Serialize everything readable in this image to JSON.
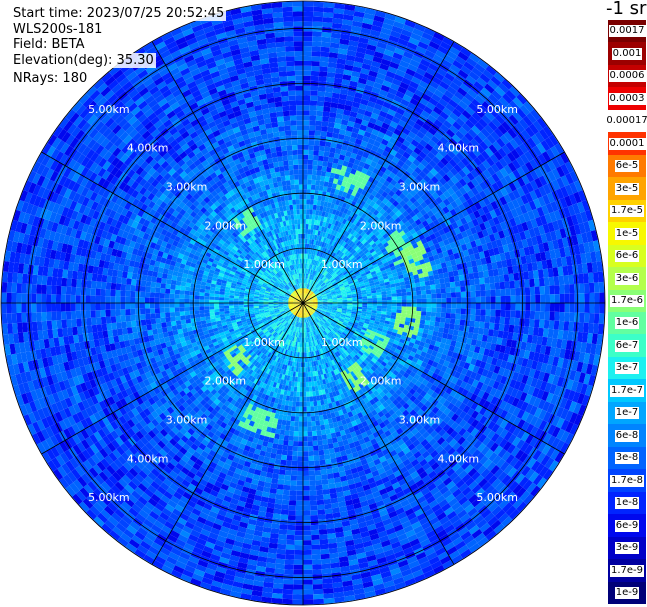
{
  "info": {
    "start_time": "Start time: 2023/07/25 20:52:45",
    "device": "WLS200s-181",
    "field": "Field: BETA",
    "elevation": "Elevation(deg): 35.30",
    "nrays": "NRays: 180"
  },
  "colorbar": {
    "unit_title": "-1 sr",
    "labels": [
      "0.0017",
      "0.001",
      "0.0006",
      "0.0003",
      "0.00017",
      "0.0001",
      "6e-5",
      "3e-5",
      "1.7e-5",
      "1e-5",
      "6e-6",
      "3e-6",
      "1.7e-6",
      "1e-6",
      "6e-7",
      "3e-7",
      "1.7e-7",
      "1e-7",
      "6e-8",
      "3e-8",
      "1.7e-8",
      "1e-8",
      "6e-9",
      "3e-9",
      "1.7e-9",
      "1e-9"
    ],
    "colors": [
      "#7a0000",
      "#9c0000",
      "#c40000",
      "#ee0000",
      "#ffffff",
      "#ff3300",
      "#ff7a00",
      "#ffa400",
      "#ffd100",
      "#f8f800",
      "#d8ff20",
      "#b4ff4c",
      "#8aff76",
      "#62ffa0",
      "#3cffc8",
      "#1cf0f0",
      "#00c8ff",
      "#00a6ff",
      "#0084ff",
      "#0064ff",
      "#0044ff",
      "#0024ff",
      "#0008ee",
      "#0000c8",
      "#0000a0",
      "#000078"
    ]
  },
  "chart_data": {
    "type": "heatmap",
    "projection": "polar-ppi",
    "field": "BETA",
    "elevation_deg": 35.3,
    "n_rays": 180,
    "range_rings_km": [
      1,
      2,
      3,
      4,
      5
    ],
    "range_labels": [
      "1.00km",
      "2.00km",
      "3.00km",
      "4.00km",
      "5.00km"
    ],
    "azimuth_lines_deg": [
      0,
      30,
      60,
      90,
      120,
      150,
      180,
      210,
      240,
      270,
      300,
      330
    ],
    "max_range_km": 5.5,
    "color_scale": "log",
    "value_range": [
      1e-09,
      0.0017
    ],
    "regions": [
      {
        "range_km": [
          0.0,
          0.3
        ],
        "value": 1e-05
      },
      {
        "range_km": [
          0.3,
          0.9
        ],
        "value": 1.7e-07
      },
      {
        "range_km": [
          0.9,
          1.7
        ],
        "value": 1e-07
      },
      {
        "range_km": [
          1.7,
          2.4
        ],
        "value": 6e-08
      },
      {
        "range_km": [
          2.4,
          3.4
        ],
        "value": 3e-08
      },
      {
        "range_km": [
          3.4,
          5.5
        ],
        "value": 1.7e-08
      }
    ],
    "hotspots": [
      {
        "az_deg": 60,
        "range_km": 2.0,
        "value": 1e-06
      },
      {
        "az_deg": 70,
        "range_km": 2.2,
        "value": 1.7e-06
      },
      {
        "az_deg": 100,
        "range_km": 1.9,
        "value": 1.7e-06
      },
      {
        "az_deg": 120,
        "range_km": 1.5,
        "value": 1e-06
      },
      {
        "az_deg": 145,
        "range_km": 1.7,
        "value": 1.7e-06
      },
      {
        "az_deg": 200,
        "range_km": 2.3,
        "value": 1e-06
      },
      {
        "az_deg": 230,
        "range_km": 1.6,
        "value": 1.7e-06
      },
      {
        "az_deg": 325,
        "range_km": 1.8,
        "value": 1e-06
      },
      {
        "az_deg": 20,
        "range_km": 2.4,
        "value": 1e-06
      }
    ]
  }
}
